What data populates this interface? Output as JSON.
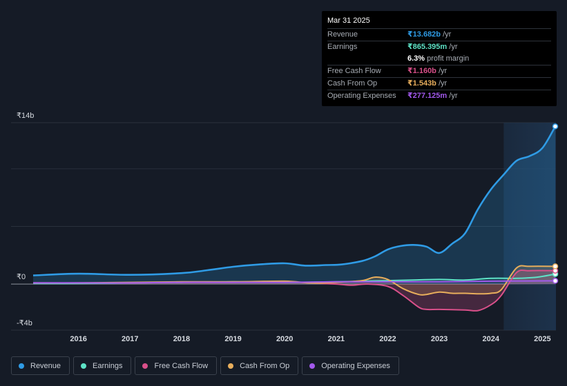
{
  "tooltip": {
    "date": "Mar 31 2025",
    "rows": [
      {
        "label": "Revenue",
        "value": "₹13.682b",
        "unit": " /yr",
        "color": "#2f9be5"
      },
      {
        "label": "Earnings",
        "value": "₹865.395m",
        "unit": " /yr",
        "color": "#5ee3c7"
      },
      {
        "label": "",
        "value": "6.3%",
        "unit": " profit margin",
        "color": "#ffffff"
      },
      {
        "label": "Free Cash Flow",
        "value": "₹1.160b",
        "unit": " /yr",
        "color": "#d9508a"
      },
      {
        "label": "Cash From Op",
        "value": "₹1.543b",
        "unit": " /yr",
        "color": "#e8ae5c"
      },
      {
        "label": "Operating Expenses",
        "value": "₹277.125m",
        "unit": " /yr",
        "color": "#a259ec"
      }
    ]
  },
  "legend": [
    {
      "label": "Revenue",
      "color": "#2f9be5"
    },
    {
      "label": "Earnings",
      "color": "#5ee3c7"
    },
    {
      "label": "Free Cash Flow",
      "color": "#d9508a"
    },
    {
      "label": "Cash From Op",
      "color": "#e8ae5c"
    },
    {
      "label": "Operating Expenses",
      "color": "#a259ec"
    }
  ],
  "chart_data": {
    "type": "line",
    "currency_unit": "₹ billions",
    "ylim": [
      -4,
      14
    ],
    "y_tick_labels": [
      {
        "value": 14,
        "label": "₹14b"
      },
      {
        "value": 0,
        "label": "₹0"
      },
      {
        "value": -4,
        "label": "-₹4b"
      }
    ],
    "xlim": [
      2015.12,
      2025.25
    ],
    "x_ticks": [
      {
        "value": 2016,
        "label": "2016"
      },
      {
        "value": 2017,
        "label": "2017"
      },
      {
        "value": 2018,
        "label": "2018"
      },
      {
        "value": 2019,
        "label": "2019"
      },
      {
        "value": 2020,
        "label": "2020"
      },
      {
        "value": 2021,
        "label": "2021"
      },
      {
        "value": 2022,
        "label": "2022"
      },
      {
        "value": 2023,
        "label": "2023"
      },
      {
        "value": 2024,
        "label": "2024"
      },
      {
        "value": 2025,
        "label": "2025"
      }
    ],
    "shaded_region": [
      2024.25,
      2025.25
    ],
    "series": [
      {
        "name": "Revenue",
        "color": "#2f9be5",
        "x": [
          2015.12,
          2016.0,
          2017.0,
          2018.0,
          2018.5,
          2019.0,
          2019.5,
          2020.0,
          2020.4,
          2020.8,
          2021.1,
          2021.5,
          2021.75,
          2022.0,
          2022.25,
          2022.5,
          2022.75,
          2023.0,
          2023.25,
          2023.5,
          2023.75,
          2024.0,
          2024.25,
          2024.5,
          2024.75,
          2025.0,
          2025.25
        ],
        "values": [
          0.75,
          0.9,
          0.8,
          0.95,
          1.2,
          1.5,
          1.7,
          1.8,
          1.6,
          1.65,
          1.7,
          2.0,
          2.4,
          3.0,
          3.3,
          3.4,
          3.25,
          2.7,
          3.5,
          4.4,
          6.5,
          8.2,
          9.5,
          10.7,
          11.1,
          11.8,
          13.68
        ]
      },
      {
        "name": "Earnings",
        "color": "#5ee3c7",
        "x": [
          2015.12,
          2016.0,
          2017.0,
          2018.0,
          2019.0,
          2020.0,
          2021.0,
          2021.5,
          2022.0,
          2022.5,
          2023.0,
          2023.5,
          2024.0,
          2024.5,
          2024.9,
          2025.25
        ],
        "values": [
          0.05,
          0.05,
          0.1,
          0.15,
          0.2,
          0.15,
          0.2,
          0.25,
          0.3,
          0.35,
          0.4,
          0.35,
          0.5,
          0.5,
          0.6,
          0.87
        ]
      },
      {
        "name": "Free Cash Flow",
        "color": "#d9508a",
        "x": [
          2015.12,
          2016.0,
          2017.0,
          2018.0,
          2019.0,
          2020.0,
          2020.5,
          2021.0,
          2021.3,
          2021.6,
          2022.0,
          2022.3,
          2022.6,
          2022.75,
          2023.0,
          2023.5,
          2023.75,
          2024.0,
          2024.2,
          2024.5,
          2024.75,
          2025.25
        ],
        "values": [
          0.1,
          0.1,
          0.1,
          0.15,
          0.15,
          0.2,
          0.1,
          0.0,
          -0.1,
          0.0,
          -0.2,
          -1.0,
          -2.0,
          -2.2,
          -2.2,
          -2.25,
          -2.3,
          -1.8,
          -1.0,
          1.0,
          1.16,
          1.16
        ]
      },
      {
        "name": "Cash From Op",
        "color": "#e8ae5c",
        "x": [
          2015.12,
          2016.0,
          2017.0,
          2018.0,
          2019.0,
          2020.0,
          2020.5,
          2021.0,
          2021.5,
          2021.75,
          2022.0,
          2022.3,
          2022.6,
          2022.75,
          2023.0,
          2023.25,
          2023.5,
          2023.75,
          2024.0,
          2024.2,
          2024.5,
          2024.75,
          2025.25
        ],
        "values": [
          0.1,
          0.1,
          0.15,
          0.2,
          0.2,
          0.25,
          0.1,
          0.15,
          0.3,
          0.6,
          0.4,
          -0.4,
          -0.9,
          -0.9,
          -0.7,
          -0.8,
          -0.8,
          -0.85,
          -0.8,
          -0.5,
          1.4,
          1.54,
          1.54
        ]
      },
      {
        "name": "Operating Expenses",
        "color": "#a259ec",
        "x": [
          2015.12,
          2016.0,
          2017.0,
          2018.0,
          2019.0,
          2020.0,
          2021.0,
          2022.0,
          2023.0,
          2024.0,
          2025.25
        ],
        "values": [
          0.1,
          0.1,
          0.1,
          0.15,
          0.15,
          0.15,
          0.2,
          0.2,
          0.2,
          0.25,
          0.28
        ]
      }
    ]
  }
}
